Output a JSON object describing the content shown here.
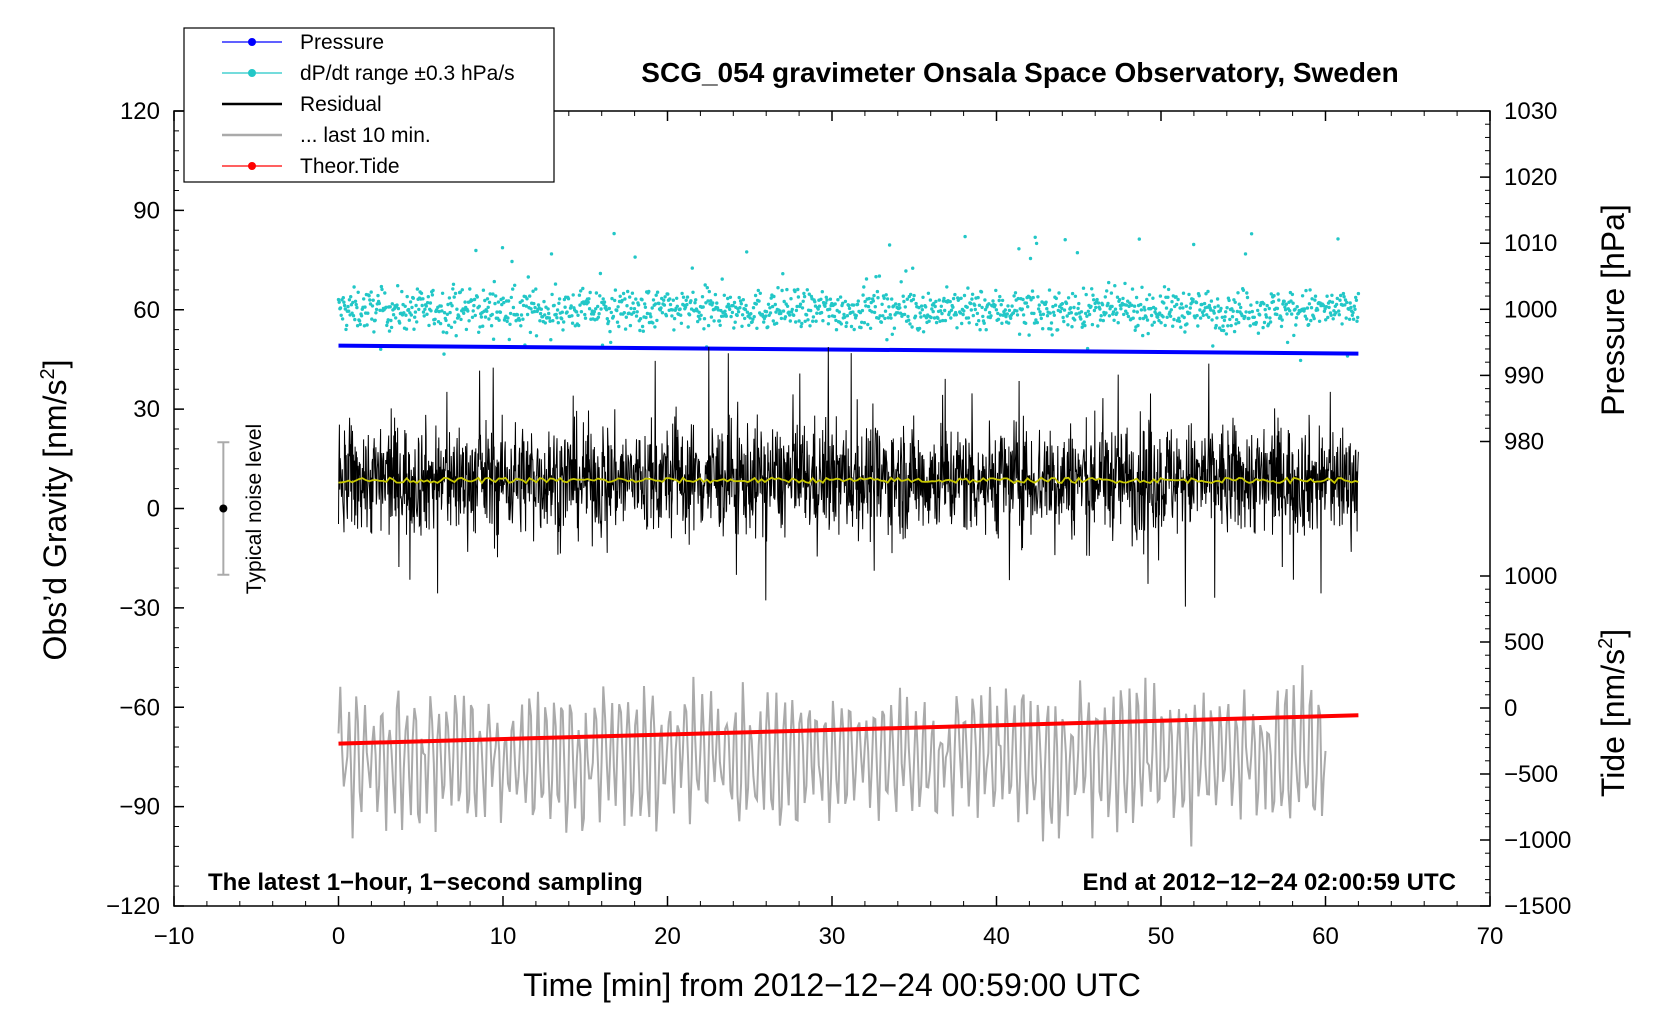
{
  "chart_data": {
    "type": "line",
    "title": "SCG_054 gravimeter Onsala Space Observatory, Sweden",
    "xlabel": "Time [min] from 2012−12−24 00:59:00 UTC",
    "ylabel_left": "Obs’d Gravity [nm/s",
    "ylabel_left_sup": "2",
    "ylabel_left_end": "]",
    "ylabel_right_pressure": "Pressure [hPa]",
    "ylabel_right_tide": "Tide [nm/s",
    "ylabel_right_tide_sup": "2",
    "ylabel_right_tide_end": "]",
    "xlim": [
      -10,
      70
    ],
    "ylim_left": [
      -120,
      120
    ],
    "pressure_range": [
      960,
      1030
    ],
    "tide_range": [
      -1500,
      1000
    ],
    "x_ticks": [
      "−10",
      "0",
      "10",
      "20",
      "30",
      "40",
      "50",
      "60",
      "70"
    ],
    "x_tick_values": [
      -10,
      0,
      10,
      20,
      30,
      40,
      50,
      60,
      70
    ],
    "y_ticks_left": [
      "120",
      "90",
      "60",
      "30",
      "0",
      "−30",
      "−60",
      "−90",
      "−120"
    ],
    "y_tick_values_left": [
      120,
      90,
      60,
      30,
      0,
      -30,
      -60,
      -90,
      -120
    ],
    "pressure_ticks": [
      "1030",
      "1020",
      "1010",
      "1000",
      "990",
      "980"
    ],
    "pressure_tick_values": [
      1030,
      1020,
      1010,
      1000,
      990,
      980
    ],
    "tide_ticks": [
      "1000",
      "500",
      "0",
      "−500",
      "−1000",
      "−1500"
    ],
    "tide_tick_values": [
      1000,
      500,
      0,
      -500,
      -1000,
      -1500
    ],
    "legend": [
      {
        "name": "Pressure",
        "color": "#0000ff",
        "marker": true
      },
      {
        "name": "dP/dt range ±0.3 hPa/s",
        "color": "#22c7c7",
        "marker": true
      },
      {
        "name": "Residual",
        "color": "#000000",
        "marker": false
      },
      {
        "name": "... last 10 min.",
        "color": "#aaaaaa",
        "marker": false
      },
      {
        "name": "Theor.Tide",
        "color": "#ff0000",
        "marker": true
      }
    ],
    "series": [
      {
        "name": "Pressure",
        "axis": "pressure",
        "x": [
          0,
          62
        ],
        "values": [
          994.5,
          993.3
        ],
        "color": "#0000ff"
      },
      {
        "name": "dP/dt range ±0.3 hPa/s",
        "axis": "left",
        "center": 60,
        "spread": 5,
        "x_range": [
          0,
          62
        ],
        "color": "#22c7c7"
      },
      {
        "name": "Residual",
        "axis": "left",
        "center": 9,
        "spread": 12,
        "x_range": [
          0,
          62
        ],
        "color": "#000000"
      },
      {
        "name": "Residual mean",
        "axis": "left",
        "center": 8.5,
        "x_range": [
          0,
          62
        ],
        "color": "#c8c800"
      },
      {
        "name": "... last 10 min.",
        "axis": "left",
        "center": -75,
        "spread": 18,
        "x_range": [
          0,
          60
        ],
        "color": "#aaaaaa"
      },
      {
        "name": "Theor.Tide",
        "axis": "tide",
        "x": [
          0,
          62
        ],
        "values": [
          -270,
          -55
        ],
        "color": "#ff0000"
      }
    ],
    "noise_bar": {
      "x": -7,
      "center": 0,
      "low": -20,
      "high": 20,
      "label": "Typical noise level"
    },
    "annotation_left": "The latest 1−hour, 1−second sampling",
    "annotation_right": "End at 2012−12−24 02:00:59 UTC"
  }
}
